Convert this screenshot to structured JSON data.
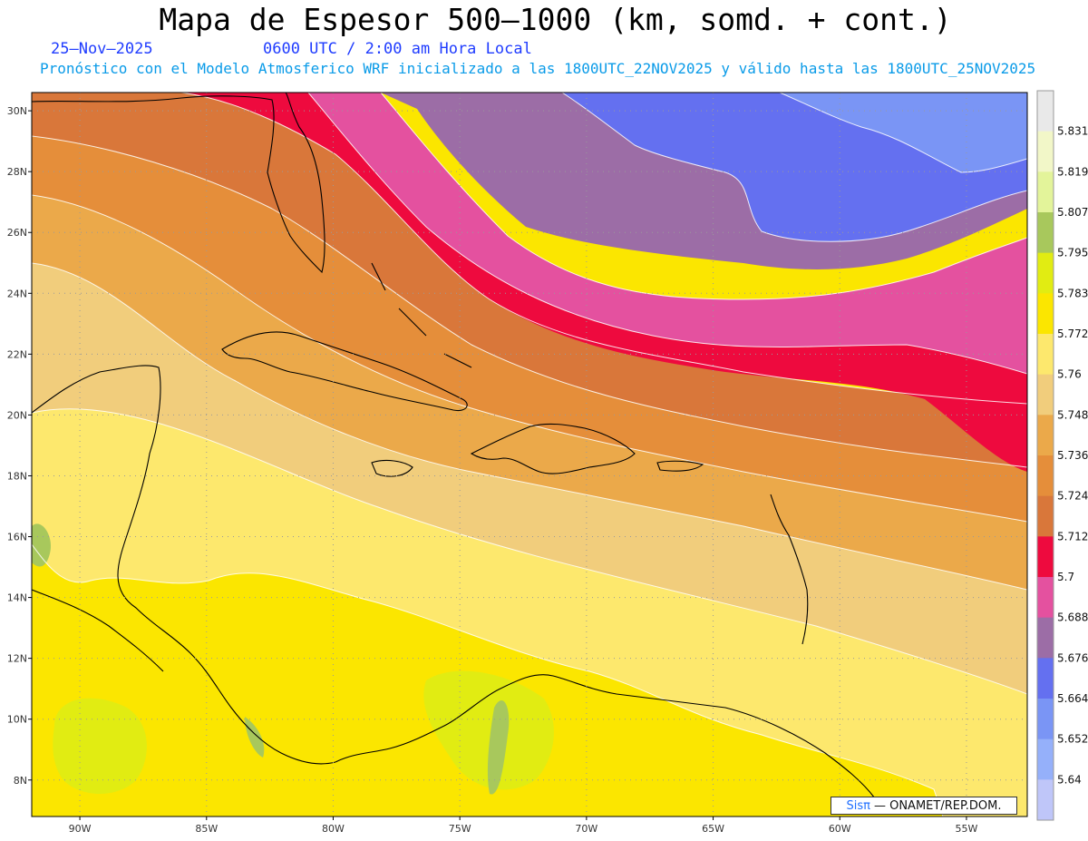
{
  "header": {
    "title": "Mapa de Espesor 500—1000 (km, somd. + cont.)",
    "date": "25—Nov—2025",
    "utc_time": "0600 UTC / 2:00 am Hora Local",
    "subtitle": "Pronóstico con el Modelo Atmosferico WRF inicializado a las 1800UTC_22NOV2025 y válido hasta las  1800UTC_25NOV2025"
  },
  "map": {
    "lat_ticks": [
      "30N",
      "28N",
      "26N",
      "24N",
      "22N",
      "20N",
      "18N",
      "16N",
      "14N",
      "12N",
      "10N",
      "8N"
    ],
    "lon_ticks": [
      "90W",
      "85W",
      "80W",
      "75W",
      "70W",
      "65W",
      "60W",
      "55W"
    ],
    "lat_range": [
      6.8,
      30.6
    ],
    "lon_range": [
      -91.9,
      -52.6
    ]
  },
  "colorbar": {
    "labels": [
      "5.831",
      "5.819",
      "5.807",
      "5.795",
      "5.783",
      "5.772",
      "5.76",
      "5.748",
      "5.736",
      "5.724",
      "5.712",
      "5.7",
      "5.688",
      "5.676",
      "5.664",
      "5.652",
      "5.64"
    ],
    "colors": [
      "#e9e9e9",
      "#f2f7c8",
      "#e3f49a",
      "#a8c85c",
      "#e1ec12",
      "#fbe600",
      "#fde86d",
      "#f1cd7c",
      "#eba94a",
      "#e58e3a",
      "#d9773a",
      "#ee0a3e",
      "#e4519f",
      "#9c6da6",
      "#6470f0",
      "#7a95f5",
      "#95b0fa",
      "#bfc6f9"
    ]
  },
  "credit": {
    "brand": "Sisπ",
    "text": "— ONAMET/REP.DOM."
  }
}
